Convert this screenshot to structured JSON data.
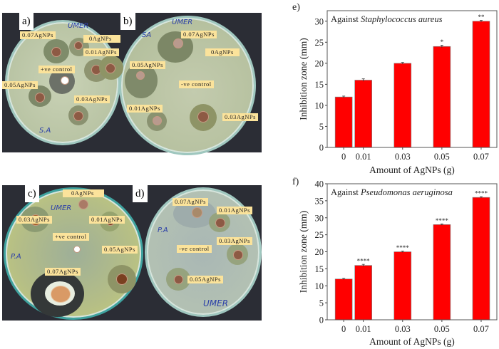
{
  "panels": {
    "a": {
      "label": "a)",
      "labels": [
        "0.07AgNPs",
        "0AgNPs",
        "0.01AgNPs",
        "+ve control",
        "0.05AgNPs",
        "0.03AgNPs"
      ],
      "handwriting": [
        "UMER",
        "S.A"
      ]
    },
    "b": {
      "label": "b)",
      "labels": [
        "0.07AgNPs",
        "0AgNPs",
        "0.05AgNPs",
        "-ve control",
        "0.01AgNPs",
        "0.03AgNPs"
      ],
      "handwriting": [
        "UMER",
        "SA"
      ]
    },
    "c": {
      "label": "c)",
      "labels": [
        "0AgNPs",
        "0.03AgNPs",
        "0.01AgNPs",
        "+ve control",
        "0.05AgNPs",
        "0.07AgNPs"
      ],
      "handwriting": [
        "UMER",
        "P.A"
      ]
    },
    "d": {
      "label": "d)",
      "labels": [
        "0.07AgNPs",
        "0.01AgNPs",
        "0.03AgNPs",
        "-ve control",
        "0.05AgNPs"
      ],
      "handwriting": [
        "P.A",
        "UMER"
      ]
    }
  },
  "colors": {
    "bar": "#ff0000",
    "label_bg": "#fbe39b",
    "photo_bg": "#2b2d35"
  },
  "chart_data": [
    {
      "panel_label": "e)",
      "type": "bar",
      "title_prefix": "Against ",
      "title_species": "Staphylococcus aureus",
      "xlabel": "Amount of AgNPs (g)",
      "ylabel": "Inhibition zone (mm)",
      "x": [
        0,
        0.01,
        0.03,
        0.05,
        0.07
      ],
      "tick_labels": [
        "0",
        "0.01",
        "0.03",
        "0.05",
        "0.07"
      ],
      "values": [
        12,
        16,
        20,
        24,
        30
      ],
      "errors": [
        0.2,
        0.3,
        0.2,
        0.3,
        0.2
      ],
      "significance": [
        "",
        "",
        "",
        "*",
        "**"
      ],
      "ylim": [
        0,
        32.5
      ],
      "yticks": [
        0,
        5,
        10,
        15,
        20,
        25,
        30
      ],
      "grid": false
    },
    {
      "panel_label": "f)",
      "type": "bar",
      "title_prefix": "Against ",
      "title_species": "Pseudomonas aeruginosa",
      "xlabel": "Amount of AgNPs (g)",
      "ylabel": "Inhibition zone (mm)",
      "x": [
        0,
        0.01,
        0.03,
        0.05,
        0.07
      ],
      "tick_labels": [
        "0",
        "0.01",
        "0.03",
        "0.05",
        "0.07"
      ],
      "values": [
        12,
        16,
        20,
        28,
        36
      ],
      "errors": [
        0.2,
        0.3,
        0.2,
        0.2,
        0.2
      ],
      "significance": [
        "",
        "****",
        "****",
        "****",
        "****"
      ],
      "ylim": [
        0,
        40
      ],
      "yticks": [
        0,
        5,
        10,
        15,
        20,
        25,
        30,
        35,
        40
      ],
      "grid": false
    }
  ]
}
